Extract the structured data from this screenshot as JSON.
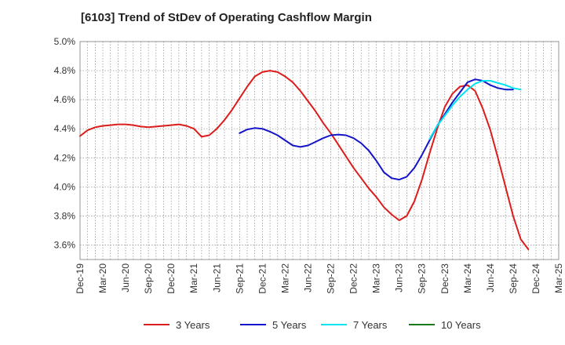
{
  "chart_data": {
    "type": "line",
    "title": "[6103]  Trend of StDev of Operating Cashflow Margin",
    "xlabel": "",
    "ylabel": "",
    "y_unit": "%",
    "ylim": [
      3.5,
      5.0
    ],
    "yticks": [
      3.6,
      3.8,
      4.0,
      4.2,
      4.4,
      4.6,
      4.8,
      5.0
    ],
    "ytick_labels": [
      "3.6%",
      "3.8%",
      "4.0%",
      "4.2%",
      "4.4%",
      "4.6%",
      "4.8%",
      "5.0%"
    ],
    "x_tick_labels": [
      "Dec-19",
      "Mar-20",
      "Jun-20",
      "Sep-20",
      "Dec-20",
      "Mar-21",
      "Jun-21",
      "Sep-21",
      "Dec-21",
      "Mar-22",
      "Jun-22",
      "Sep-22",
      "Dec-22",
      "Mar-23",
      "Jun-23",
      "Sep-23",
      "Dec-23",
      "Mar-24",
      "Jun-24",
      "Sep-24",
      "Dec-24",
      "Mar-25"
    ],
    "grid": true,
    "legend_position": "bottom",
    "series": [
      {
        "name": "3 Years",
        "color": "#dd1c1c",
        "points": [
          [
            "Dec-19",
            4.35
          ],
          [
            "Jan-20",
            4.39
          ],
          [
            "Feb-20",
            4.41
          ],
          [
            "Mar-20",
            4.42
          ],
          [
            "Apr-20",
            4.425
          ],
          [
            "May-20",
            4.43
          ],
          [
            "Jun-20",
            4.43
          ],
          [
            "Jul-20",
            4.425
          ],
          [
            "Aug-20",
            4.415
          ],
          [
            "Sep-20",
            4.41
          ],
          [
            "Oct-20",
            4.415
          ],
          [
            "Nov-20",
            4.42
          ],
          [
            "Dec-20",
            4.425
          ],
          [
            "Jan-21",
            4.43
          ],
          [
            "Feb-21",
            4.42
          ],
          [
            "Mar-21",
            4.4
          ],
          [
            "Apr-21",
            4.345
          ],
          [
            "May-21",
            4.355
          ],
          [
            "Jun-21",
            4.4
          ],
          [
            "Jul-21",
            4.46
          ],
          [
            "Aug-21",
            4.53
          ],
          [
            "Sep-21",
            4.61
          ],
          [
            "Oct-21",
            4.69
          ],
          [
            "Nov-21",
            4.76
          ],
          [
            "Dec-21",
            4.79
          ],
          [
            "Jan-22",
            4.8
          ],
          [
            "Feb-22",
            4.79
          ],
          [
            "Mar-22",
            4.76
          ],
          [
            "Apr-22",
            4.72
          ],
          [
            "May-22",
            4.66
          ],
          [
            "Jun-22",
            4.59
          ],
          [
            "Jul-22",
            4.52
          ],
          [
            "Aug-22",
            4.44
          ],
          [
            "Sep-22",
            4.37
          ],
          [
            "Oct-22",
            4.29
          ],
          [
            "Nov-22",
            4.21
          ],
          [
            "Dec-22",
            4.13
          ],
          [
            "Jan-23",
            4.06
          ],
          [
            "Feb-23",
            3.99
          ],
          [
            "Mar-23",
            3.93
          ],
          [
            "Apr-23",
            3.86
          ],
          [
            "May-23",
            3.81
          ],
          [
            "Jun-23",
            3.77
          ],
          [
            "Jul-23",
            3.8
          ],
          [
            "Aug-23",
            3.9
          ],
          [
            "Sep-23",
            4.05
          ],
          [
            "Oct-23",
            4.23
          ],
          [
            "Nov-23",
            4.4
          ],
          [
            "Dec-23",
            4.55
          ],
          [
            "Jan-24",
            4.64
          ],
          [
            "Feb-24",
            4.69
          ],
          [
            "Mar-24",
            4.7
          ],
          [
            "Apr-24",
            4.66
          ],
          [
            "May-24",
            4.54
          ],
          [
            "Jun-24",
            4.39
          ],
          [
            "Jul-24",
            4.2
          ],
          [
            "Aug-24",
            4.0
          ],
          [
            "Sep-24",
            3.8
          ],
          [
            "Oct-24",
            3.64
          ],
          [
            "Nov-24",
            3.57
          ]
        ]
      },
      {
        "name": "5 Years",
        "color": "#1414c8",
        "points": [
          [
            "Sep-21",
            4.37
          ],
          [
            "Oct-21",
            4.395
          ],
          [
            "Nov-21",
            4.405
          ],
          [
            "Dec-21",
            4.4
          ],
          [
            "Jan-22",
            4.38
          ],
          [
            "Feb-22",
            4.355
          ],
          [
            "Mar-22",
            4.32
          ],
          [
            "Apr-22",
            4.285
          ],
          [
            "May-22",
            4.275
          ],
          [
            "Jun-22",
            4.285
          ],
          [
            "Jul-22",
            4.31
          ],
          [
            "Aug-22",
            4.335
          ],
          [
            "Sep-22",
            4.355
          ],
          [
            "Oct-22",
            4.36
          ],
          [
            "Nov-22",
            4.355
          ],
          [
            "Dec-22",
            4.335
          ],
          [
            "Jan-23",
            4.3
          ],
          [
            "Feb-23",
            4.25
          ],
          [
            "Mar-23",
            4.18
          ],
          [
            "Apr-23",
            4.1
          ],
          [
            "May-23",
            4.06
          ],
          [
            "Jun-23",
            4.05
          ],
          [
            "Jul-23",
            4.07
          ],
          [
            "Aug-23",
            4.13
          ],
          [
            "Sep-23",
            4.22
          ],
          [
            "Oct-23",
            4.32
          ],
          [
            "Nov-23",
            4.42
          ],
          [
            "Dec-23",
            4.5
          ],
          [
            "Jan-24",
            4.58
          ],
          [
            "Feb-24",
            4.65
          ],
          [
            "Mar-24",
            4.72
          ],
          [
            "Apr-24",
            4.74
          ],
          [
            "May-24",
            4.73
          ],
          [
            "Jun-24",
            4.7
          ],
          [
            "Jul-24",
            4.68
          ],
          [
            "Aug-24",
            4.67
          ],
          [
            "Sep-24",
            4.67
          ]
        ]
      },
      {
        "name": "7 Years",
        "color": "#00e4f0",
        "points": [
          [
            "Oct-23",
            4.33
          ],
          [
            "Nov-23",
            4.42
          ],
          [
            "Dec-23",
            4.49
          ],
          [
            "Jan-24",
            4.56
          ],
          [
            "Feb-24",
            4.62
          ],
          [
            "Mar-24",
            4.67
          ],
          [
            "Apr-24",
            4.71
          ],
          [
            "May-24",
            4.73
          ],
          [
            "Jun-24",
            4.73
          ],
          [
            "Jul-24",
            4.715
          ],
          [
            "Aug-24",
            4.7
          ],
          [
            "Sep-24",
            4.68
          ],
          [
            "Oct-24",
            4.67
          ]
        ]
      },
      {
        "name": "10 Years",
        "color": "#1a7a1a",
        "points": []
      }
    ]
  }
}
